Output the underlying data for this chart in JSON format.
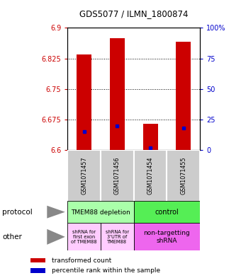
{
  "title": "GDS5077 / ILMN_1800874",
  "samples": [
    "GSM1071457",
    "GSM1071456",
    "GSM1071454",
    "GSM1071455"
  ],
  "bar_bottoms": [
    6.6,
    6.6,
    6.6,
    6.6
  ],
  "bar_tops": [
    6.835,
    6.875,
    6.665,
    6.865
  ],
  "blue_marks": [
    6.645,
    6.66,
    6.605,
    6.655
  ],
  "ylim_left": [
    6.6,
    6.9
  ],
  "ylim_right": [
    0,
    100
  ],
  "yticks_left": [
    6.6,
    6.675,
    6.75,
    6.825,
    6.9
  ],
  "yticks_right": [
    0,
    25,
    50,
    75,
    100
  ],
  "ytick_labels_left": [
    "6.6",
    "6.675",
    "6.75",
    "6.825",
    "6.9"
  ],
  "ytick_labels_right": [
    "0",
    "25",
    "50",
    "75",
    "100%"
  ],
  "bar_color": "#cc0000",
  "blue_color": "#0000cc",
  "bar_width": 0.45,
  "protocol_label_left": "TMEM88 depletion",
  "protocol_label_right": "control",
  "protocol_color_left": "#aaffaa",
  "protocol_color_right": "#55ee55",
  "other_label_0": "shRNA for\nfirst exon\nof TMEM88",
  "other_label_1": "shRNA for\n3'UTR of\nTMEM88",
  "other_label_2": "non-targetting\nshRNA",
  "other_color_light": "#ffccff",
  "other_color_bright": "#ee66ee",
  "legend_red": "transformed count",
  "legend_blue": "percentile rank within the sample",
  "background_color": "#ffffff",
  "axis_left_color": "#cc0000",
  "axis_right_color": "#0000cc",
  "gray_box_color": "#cccccc",
  "gray_divider_color": "#ffffff"
}
